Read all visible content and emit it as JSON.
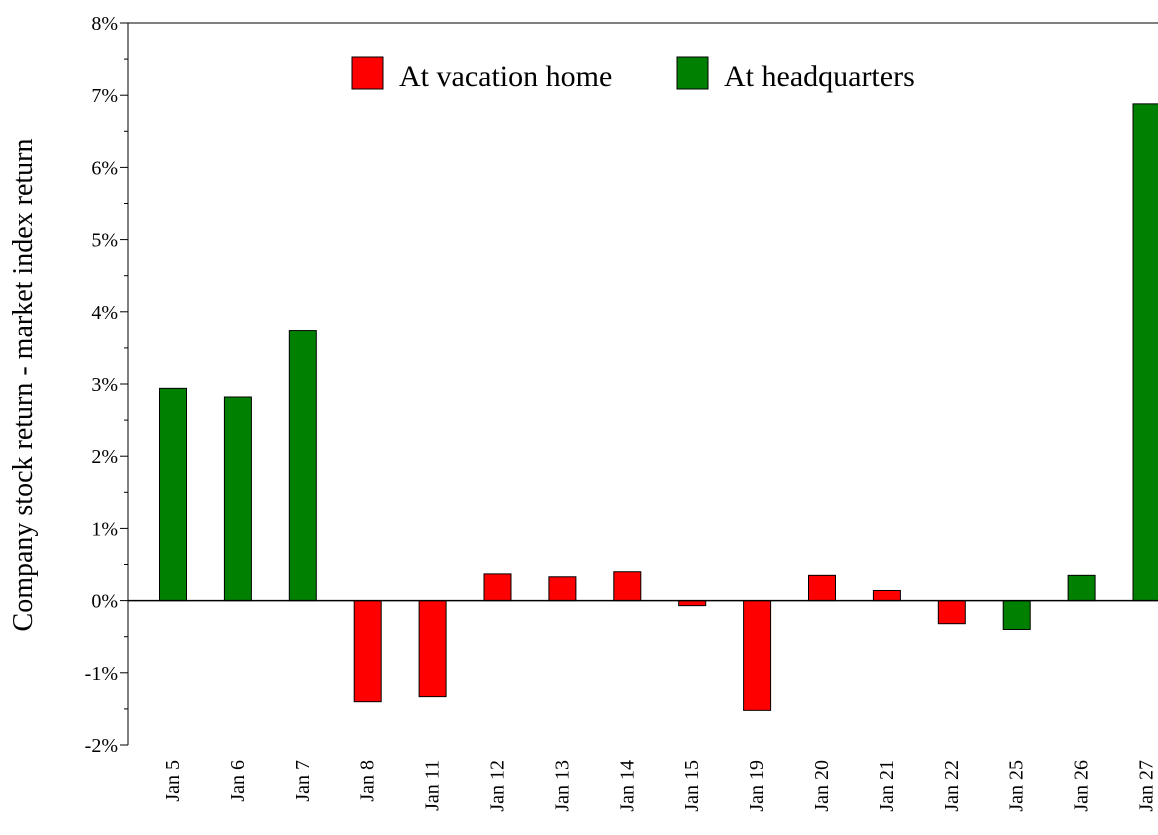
{
  "chart_data": {
    "type": "bar",
    "y_label": "Company stock return - market index return",
    "categories": [
      "Jan 5",
      "Jan 6",
      "Jan 7",
      "Jan 8",
      "Jan 11",
      "Jan 12",
      "Jan 13",
      "Jan 14",
      "Jan 15",
      "Jan 19",
      "Jan 20",
      "Jan 21",
      "Jan 22",
      "Jan 25",
      "Jan 26",
      "Jan 27"
    ],
    "series": [
      {
        "name": "At vacation home",
        "color": "#ff0000",
        "values": [
          null,
          null,
          null,
          -1.4,
          -1.33,
          0.37,
          0.33,
          0.4,
          -0.07,
          -1.52,
          0.35,
          0.14,
          -0.32,
          null,
          null,
          null
        ]
      },
      {
        "name": "At headquarters",
        "color": "#008000",
        "values": [
          2.94,
          2.82,
          3.74,
          null,
          null,
          null,
          null,
          null,
          null,
          null,
          null,
          null,
          null,
          -0.4,
          0.35,
          6.88
        ]
      }
    ],
    "ylim": [
      -2,
      8
    ],
    "yticks": [
      {
        "value": -2,
        "label": "-2%"
      },
      {
        "value": -1,
        "label": "-1%"
      },
      {
        "value": 0,
        "label": "0%"
      },
      {
        "value": 1,
        "label": "1%"
      },
      {
        "value": 2,
        "label": "2%"
      },
      {
        "value": 3,
        "label": "3%"
      },
      {
        "value": 4,
        "label": "4%"
      },
      {
        "value": 5,
        "label": "5%"
      },
      {
        "value": 6,
        "label": "6%"
      },
      {
        "value": 7,
        "label": "7%"
      },
      {
        "value": 8,
        "label": "8%"
      }
    ],
    "legend": "top"
  }
}
